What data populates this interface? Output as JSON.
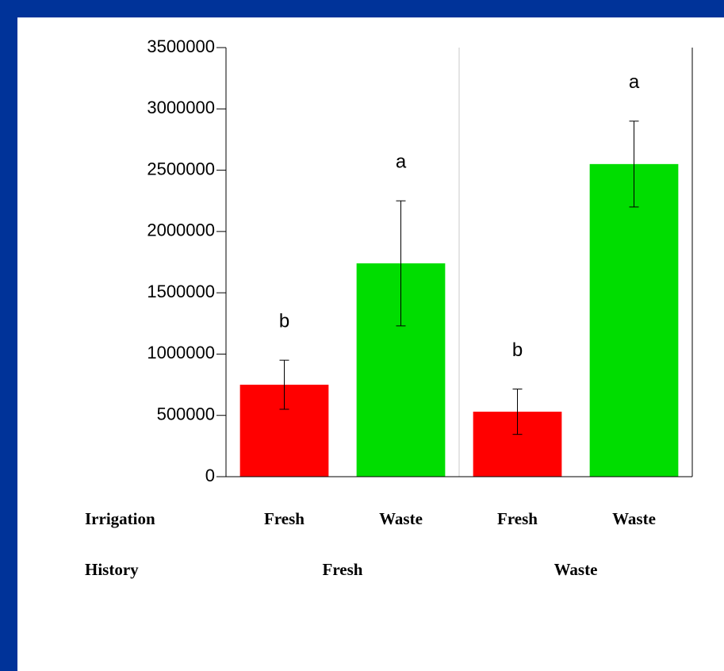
{
  "chart_data": {
    "type": "bar",
    "categories": [
      "Fresh",
      "Waste",
      "Fresh",
      "Waste"
    ],
    "values": [
      750000,
      1740000,
      530000,
      2550000
    ],
    "errors": [
      200000,
      510000,
      185000,
      350000
    ],
    "colors": [
      "#ff0000",
      "#00dd00",
      "#ff0000",
      "#00dd00"
    ],
    "letters": [
      "b",
      "a",
      "b",
      "a"
    ],
    "category_axis_label": "Irrigation",
    "group_axis_label": "History",
    "groups": [
      "Fresh",
      "Waste"
    ],
    "ylim": [
      0,
      3500000
    ],
    "yticks": [
      0,
      500000,
      1000000,
      1500000,
      2000000,
      2500000,
      3000000,
      3500000
    ]
  }
}
